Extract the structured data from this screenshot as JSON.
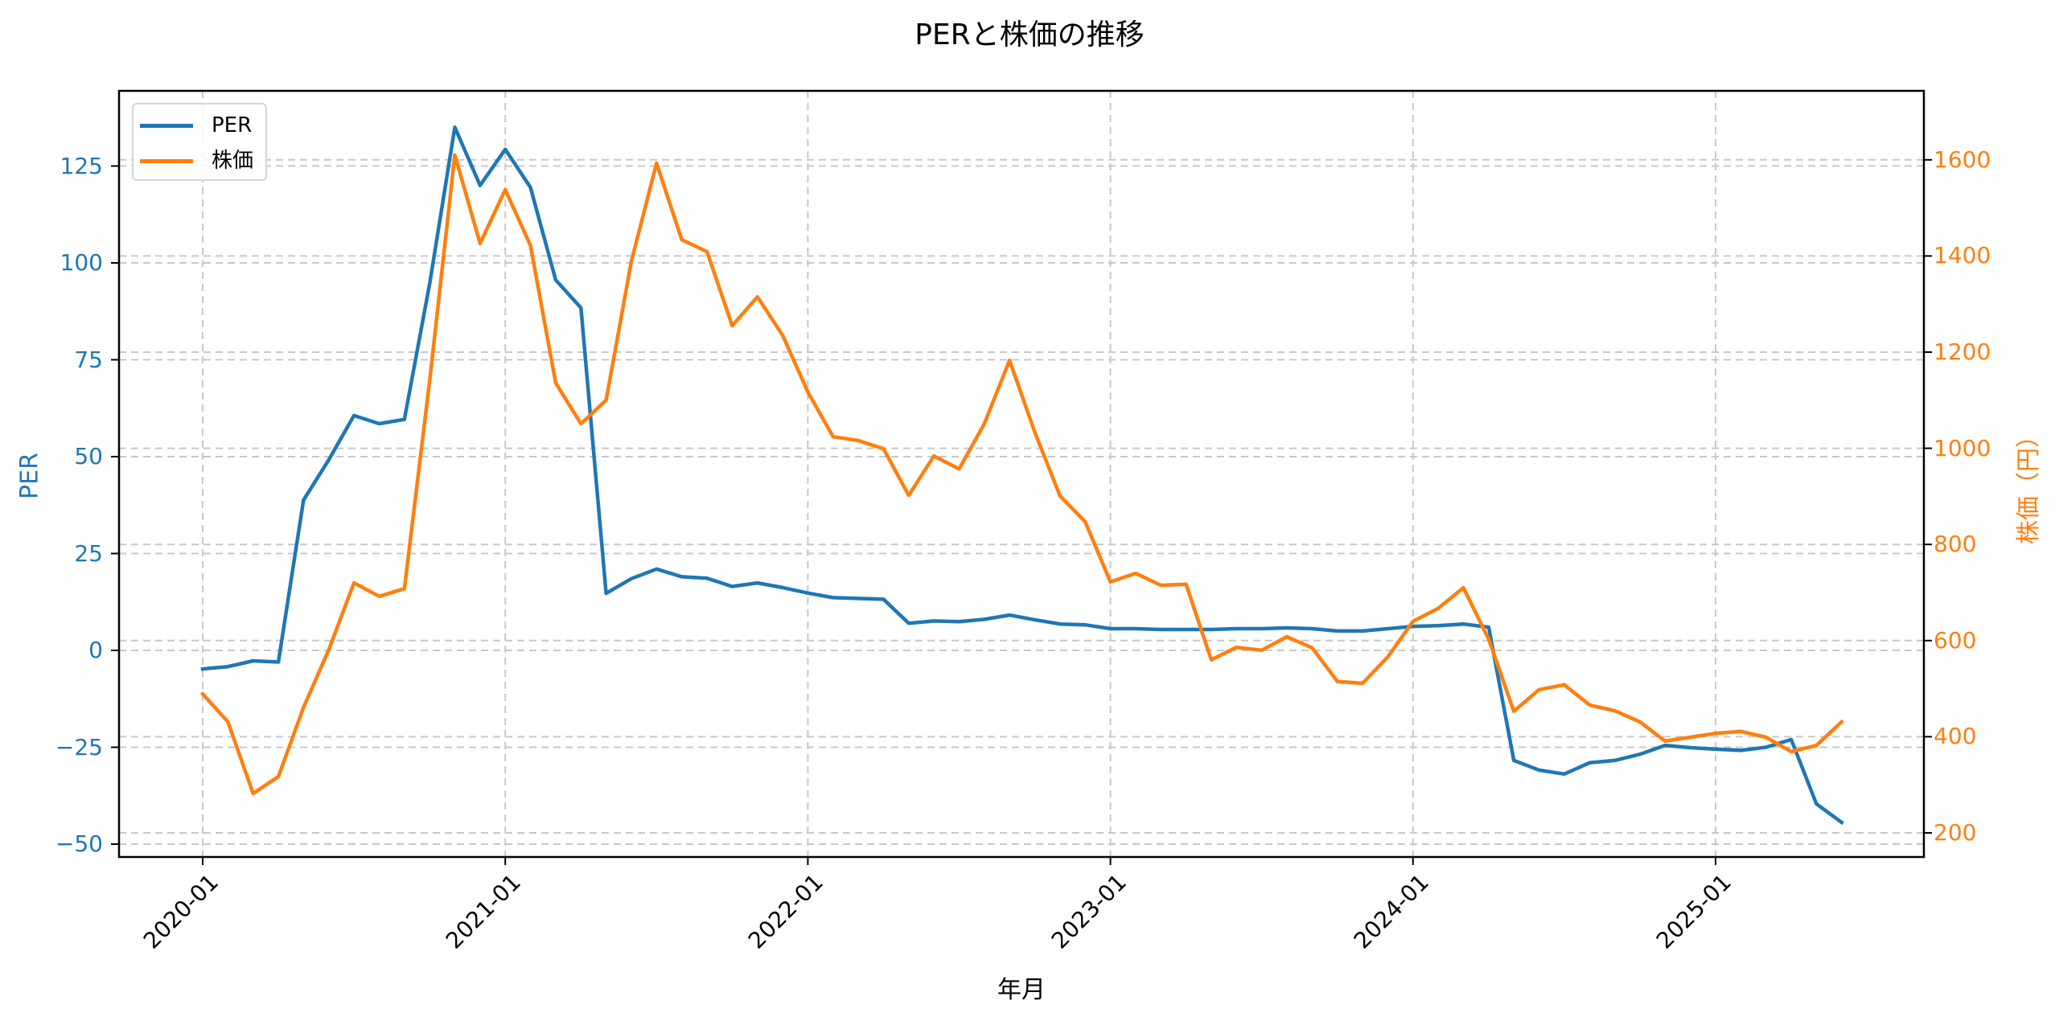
{
  "chart_data": {
    "type": "line",
    "title": "PERと株価の推移",
    "xlabel": "年月",
    "ylabel": "PER",
    "ylabel_right": "株価（円）",
    "x_start": "2020-01",
    "x_end": "2025-06",
    "x_tick_labels": [
      "2020-01",
      "2021-01",
      "2022-01",
      "2023-01",
      "2024-01",
      "2025-01"
    ],
    "y_ticks_left": [
      -50,
      -25,
      0,
      25,
      50,
      75,
      100,
      125
    ],
    "y_ticks_right": [
      200,
      400,
      600,
      800,
      1000,
      1200,
      1400,
      1600
    ],
    "ylim_left": [
      -53,
      140
    ],
    "ylim_right": [
      150,
      1740
    ],
    "grid": true,
    "legend_position": "upper left",
    "x": [
      "2020-01",
      "2020-02",
      "2020-03",
      "2020-04",
      "2020-05",
      "2020-06",
      "2020-07",
      "2020-08",
      "2020-09",
      "2020-10",
      "2020-11",
      "2020-12",
      "2021-01",
      "2021-02",
      "2021-03",
      "2021-04",
      "2021-05",
      "2021-06",
      "2021-07",
      "2021-08",
      "2021-09",
      "2021-10",
      "2021-11",
      "2021-12",
      "2022-01",
      "2022-02",
      "2022-03",
      "2022-04",
      "2022-05",
      "2022-06",
      "2022-07",
      "2022-08",
      "2022-09",
      "2022-10",
      "2022-11",
      "2022-12",
      "2023-01",
      "2023-02",
      "2023-03",
      "2023-04",
      "2023-05",
      "2023-06",
      "2023-07",
      "2023-08",
      "2023-09",
      "2023-10",
      "2023-11",
      "2023-12",
      "2024-01",
      "2024-02",
      "2024-03",
      "2024-04",
      "2024-05",
      "2024-06",
      "2024-07",
      "2024-08",
      "2024-09",
      "2024-10",
      "2024-11",
      "2024-12",
      "2025-01",
      "2025-02",
      "2025-03",
      "2025-04",
      "2025-05",
      "2025-06"
    ],
    "series": [
      {
        "name": "PER",
        "axis": "left",
        "color": "#1f77b4",
        "values": [
          -4.8,
          -4.2,
          -2.7,
          -3.0,
          38.8,
          49.2,
          60.6,
          58.5,
          59.6,
          94.6,
          135.0,
          120.0,
          129.3,
          119.5,
          95.6,
          88.4,
          14.7,
          18.5,
          21.0,
          19.0,
          18.6,
          16.5,
          17.4,
          16.2,
          14.8,
          13.6,
          13.4,
          13.2,
          7.0,
          7.6,
          7.4,
          8.0,
          9.1,
          7.9,
          6.8,
          6.6,
          5.6,
          5.6,
          5.4,
          5.4,
          5.4,
          5.6,
          5.6,
          5.8,
          5.6,
          5.0,
          5.0,
          5.6,
          6.2,
          6.4,
          6.8,
          6.0,
          -28.4,
          -30.9,
          -31.9,
          -29.0,
          -28.4,
          -26.8,
          -24.5,
          -25.1,
          -25.5,
          -25.8,
          -25.0,
          -23.0,
          -39.6,
          -44.4
        ]
      },
      {
        "name": "株価",
        "axis": "right",
        "color": "#ff7f0e",
        "values": [
          489,
          431,
          282,
          317,
          461,
          581,
          720,
          692,
          708,
          1140,
          1610,
          1426,
          1538,
          1422,
          1136,
          1051,
          1100,
          1389,
          1593,
          1434,
          1409,
          1255,
          1315,
          1235,
          1117,
          1024,
          1016,
          999,
          902,
          984,
          957,
          1051,
          1183,
          1034,
          901,
          847,
          722,
          740,
          715,
          717,
          560,
          586,
          580,
          608,
          585,
          515,
          511,
          566,
          640,
          667,
          710,
          603,
          453,
          498,
          508,
          466,
          454,
          431,
          391,
          399,
          407,
          411,
          399,
          369,
          382,
          431
        ]
      }
    ]
  },
  "legend": {
    "items": [
      {
        "label": "PER",
        "color": "#1f77b4"
      },
      {
        "label": "株価",
        "color": "#ff7f0e"
      }
    ]
  },
  "colors": {
    "per": "#1f77b4",
    "price": "#ff7f0e",
    "grid": "#c8c8c8",
    "axis": "#000000"
  }
}
